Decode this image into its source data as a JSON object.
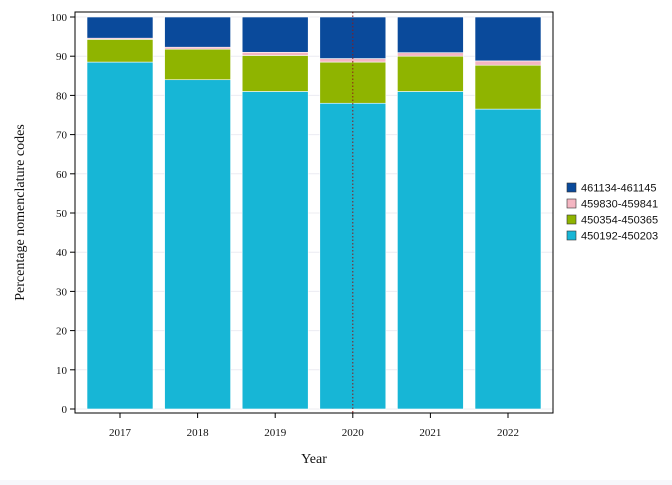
{
  "chart_data": {
    "type": "bar",
    "stacked": true,
    "title": "",
    "xlabel": "Year",
    "ylabel": "Percentage nomenclature codes",
    "ylim": [
      0,
      100
    ],
    "yticks": [
      "0",
      "10",
      "20",
      "30",
      "40",
      "50",
      "60",
      "70",
      "80",
      "90",
      "100"
    ],
    "categories": [
      "2017",
      "2018",
      "2019",
      "2020",
      "2021",
      "2022"
    ],
    "grid": true,
    "legend_position": "right",
    "reference_line": {
      "x_category": "2020",
      "style": "dotted",
      "color": "#8b1a1a"
    },
    "series": [
      {
        "name": "450192-450203",
        "color": "#17b6d6",
        "values": [
          88.5,
          84.0,
          81.0,
          78.0,
          81.0,
          76.5
        ]
      },
      {
        "name": "450354-450365",
        "color": "#8fb400",
        "values": [
          5.8,
          7.8,
          9.2,
          10.5,
          9.0,
          11.2
        ]
      },
      {
        "name": "459830-459841",
        "color": "#f4b6c2",
        "values": [
          0.3,
          0.5,
          0.8,
          0.9,
          0.9,
          1.1
        ]
      },
      {
        "name": "461134-461145",
        "color": "#0a4a9b",
        "values": [
          5.4,
          7.7,
          9.0,
          10.6,
          9.1,
          11.2
        ]
      }
    ]
  }
}
